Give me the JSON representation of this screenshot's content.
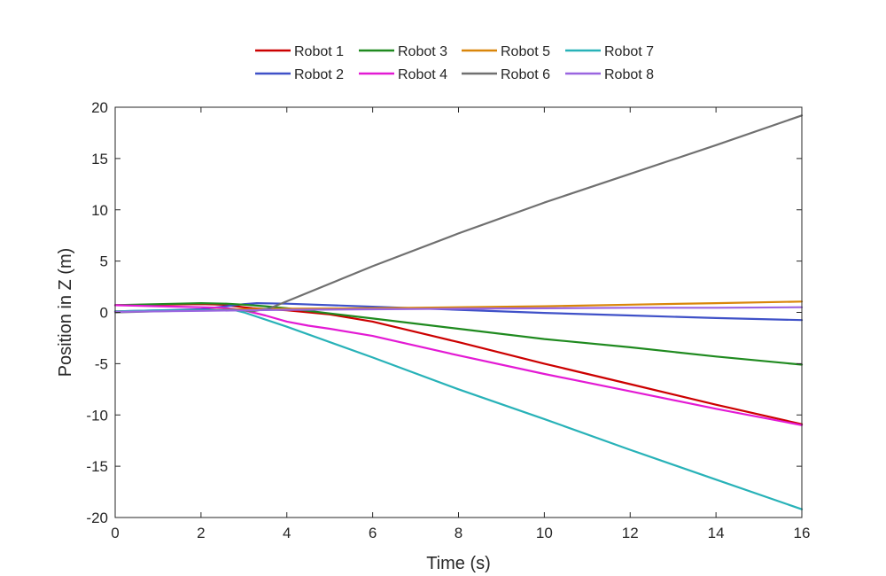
{
  "chart_data": {
    "type": "line",
    "title": "",
    "xlabel": "Time (s)",
    "ylabel": "Position in Z (m)",
    "xlim": [
      0,
      16
    ],
    "ylim": [
      -20,
      20
    ],
    "xticks": [
      0,
      2,
      4,
      6,
      8,
      10,
      12,
      14,
      16
    ],
    "yticks": [
      -20,
      -15,
      -10,
      -5,
      0,
      5,
      10,
      15,
      20
    ],
    "grid": false,
    "legend_placement": "top, outside plot, 4 columns",
    "series": [
      {
        "name": "Robot 1",
        "color": "#cc0000",
        "x": [
          0,
          1,
          2,
          2.5,
          2.8,
          3.2,
          4,
          5,
          6,
          8,
          10,
          12,
          14,
          16
        ],
        "y": [
          0.7,
          0.75,
          0.8,
          0.75,
          0.6,
          0.4,
          0.2,
          -0.2,
          -0.9,
          -2.9,
          -5.0,
          -7.0,
          -9.0,
          -10.9
        ]
      },
      {
        "name": "Robot 2",
        "color": "#3f51c8",
        "x": [
          0,
          1,
          2,
          3,
          3.3,
          4,
          6,
          8,
          10,
          12,
          14,
          16
        ],
        "y": [
          0.1,
          0.2,
          0.3,
          0.8,
          0.9,
          0.85,
          0.55,
          0.25,
          -0.05,
          -0.3,
          -0.55,
          -0.75
        ]
      },
      {
        "name": "Robot 3",
        "color": "#1f8a1f",
        "x": [
          0,
          1,
          2,
          2.6,
          3,
          3.5,
          4,
          5,
          6,
          8,
          10,
          12,
          14,
          16
        ],
        "y": [
          0.7,
          0.8,
          0.9,
          0.85,
          0.75,
          0.6,
          0.4,
          -0.1,
          -0.6,
          -1.6,
          -2.6,
          -3.4,
          -4.3,
          -5.1
        ]
      },
      {
        "name": "Robot 4",
        "color": "#e31ad4",
        "x": [
          0,
          1,
          2,
          2.5,
          3,
          3.5,
          4,
          4.5,
          5,
          6,
          8,
          10,
          12,
          14,
          16
        ],
        "y": [
          0.7,
          0.6,
          0.5,
          0.45,
          0.2,
          -0.3,
          -0.9,
          -1.3,
          -1.6,
          -2.3,
          -4.2,
          -6.0,
          -7.7,
          -9.4,
          -11.0
        ]
      },
      {
        "name": "Robot 5",
        "color": "#d9860a",
        "x": [
          0,
          1,
          2,
          3,
          4,
          6,
          8,
          10,
          12,
          14,
          16
        ],
        "y": [
          0.1,
          0.15,
          0.2,
          0.3,
          0.35,
          0.4,
          0.5,
          0.6,
          0.75,
          0.9,
          1.05
        ]
      },
      {
        "name": "Robot 6",
        "color": "#707070",
        "x": [
          0,
          1,
          2,
          2.8,
          3.2,
          3.6,
          6,
          8,
          10,
          12,
          14,
          16
        ],
        "y": [
          0.0,
          0.1,
          0.2,
          0.25,
          0.1,
          0.4,
          4.5,
          7.7,
          10.7,
          13.5,
          16.3,
          19.2
        ]
      },
      {
        "name": "Robot 7",
        "color": "#28b2b8",
        "x": [
          0,
          1,
          2,
          2.8,
          3,
          4,
          6,
          8,
          10,
          12,
          14,
          16
        ],
        "y": [
          0.1,
          0.2,
          0.2,
          0.2,
          0.0,
          -1.4,
          -4.4,
          -7.5,
          -10.4,
          -13.4,
          -16.3,
          -19.2
        ]
      },
      {
        "name": "Robot 8",
        "color": "#9a65e0",
        "x": [
          0,
          1,
          2,
          3,
          4,
          6,
          8,
          10,
          12,
          14,
          16
        ],
        "y": [
          0.05,
          0.1,
          0.15,
          0.2,
          0.25,
          0.3,
          0.35,
          0.4,
          0.45,
          0.45,
          0.5
        ]
      }
    ]
  }
}
